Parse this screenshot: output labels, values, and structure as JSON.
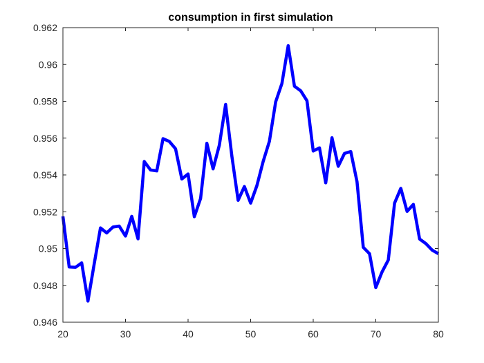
{
  "chart_data": {
    "type": "line",
    "title": "consumption in first simulation",
    "xlabel": "",
    "ylabel": "",
    "xlim": [
      20,
      80
    ],
    "ylim": [
      0.946,
      0.962
    ],
    "xticks": [
      20,
      30,
      40,
      50,
      60,
      70,
      80
    ],
    "xtick_labels": [
      "20",
      "30",
      "40",
      "50",
      "60",
      "70",
      "80"
    ],
    "yticks": [
      0.946,
      0.948,
      0.95,
      0.952,
      0.954,
      0.956,
      0.958,
      0.96,
      0.962
    ],
    "ytick_labels": [
      "0.946",
      "0.948",
      "0.95",
      "0.952",
      "0.954",
      "0.956",
      "0.958",
      "0.96",
      "0.962"
    ],
    "grid": false,
    "legend": "none",
    "series": [
      {
        "color": "#0000ff",
        "x": [
          20,
          21,
          22,
          23,
          24,
          25,
          26,
          27,
          28,
          29,
          30,
          31,
          32,
          33,
          34,
          35,
          36,
          37,
          38,
          39,
          40,
          41,
          42,
          43,
          44,
          45,
          46,
          47,
          48,
          49,
          50,
          51,
          52,
          53,
          54,
          55,
          56,
          57,
          58,
          59,
          60,
          61,
          62,
          63,
          64,
          65,
          66,
          67,
          68,
          69,
          70,
          71,
          72,
          73,
          74,
          75,
          76,
          77,
          78,
          79,
          80
        ],
        "y": [
          0.95175,
          0.949,
          0.94898,
          0.94922,
          0.94715,
          0.94917,
          0.95112,
          0.95085,
          0.95117,
          0.95122,
          0.95068,
          0.95175,
          0.95053,
          0.95473,
          0.95427,
          0.95422,
          0.95597,
          0.95582,
          0.95542,
          0.95378,
          0.95405,
          0.95173,
          0.95272,
          0.95572,
          0.95433,
          0.95562,
          0.95783,
          0.95502,
          0.95262,
          0.95337,
          0.95247,
          0.95342,
          0.95473,
          0.95583,
          0.95797,
          0.95897,
          0.96102,
          0.95882,
          0.95857,
          0.95803,
          0.9553,
          0.95547,
          0.95357,
          0.95602,
          0.95447,
          0.95517,
          0.95527,
          0.95363,
          0.95007,
          0.94972,
          0.94788,
          0.94873,
          0.94938,
          0.95247,
          0.95327,
          0.95202,
          0.9524,
          0.95052,
          0.95027,
          0.94992,
          0.94972
        ]
      }
    ]
  }
}
